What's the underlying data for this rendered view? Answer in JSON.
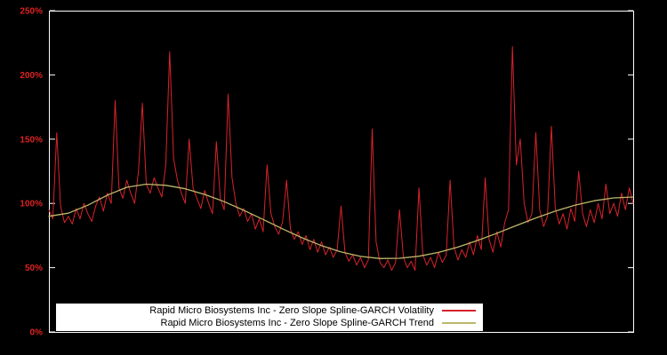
{
  "colors": {
    "background": "#000000",
    "frame": "#ffffff",
    "axis_label": "#dd2222",
    "volatility": "#d8232a",
    "trend": "#bdb76b",
    "legend_bg": "#ffffff",
    "legend_text": "#000000"
  },
  "axes": {
    "y_ticks": [
      "0%",
      "50%",
      "100%",
      "150%",
      "200%",
      "250%"
    ],
    "y_tick_values": [
      0,
      50,
      100,
      150,
      200,
      250
    ],
    "y_min": 0,
    "y_max": 250,
    "x_labels_visible": false
  },
  "legend": {
    "items": [
      {
        "label": "Rapid Micro Biosystems Inc - Zero Slope Spline-GARCH Volatility",
        "color_key": "volatility"
      },
      {
        "label": "Rapid Micro Biosystems Inc - Zero Slope Spline-GARCH Trend",
        "color_key": "trend"
      }
    ]
  },
  "chart_data": {
    "type": "line",
    "title": "",
    "xlabel": "",
    "ylabel": "",
    "y_unit": "percent",
    "ylim": [
      0,
      250
    ],
    "grid": false,
    "legend_position": "bottom-center",
    "series": [
      {
        "name": "Rapid Micro Biosystems Inc - Zero Slope Spline-GARCH Volatility",
        "color_key": "volatility",
        "values": [
          95,
          88,
          155,
          98,
          85,
          90,
          84,
          96,
          88,
          100,
          92,
          86,
          98,
          105,
          94,
          108,
          100,
          180,
          112,
          104,
          118,
          108,
          100,
          125,
          178,
          115,
          108,
          120,
          112,
          105,
          130,
          218,
          135,
          118,
          108,
          100,
          150,
          112,
          104,
          96,
          110,
          100,
          92,
          148,
          104,
          95,
          185,
          120,
          100,
          90,
          96,
          86,
          92,
          80,
          88,
          78,
          130,
          92,
          82,
          76,
          86,
          118,
          80,
          72,
          78,
          68,
          75,
          64,
          72,
          62,
          70,
          60,
          66,
          58,
          64,
          98,
          62,
          55,
          60,
          52,
          58,
          50,
          56,
          158,
          70,
          54,
          50,
          56,
          48,
          54,
          95,
          58,
          50,
          55,
          48,
          112,
          60,
          52,
          58,
          50,
          62,
          54,
          60,
          118,
          66,
          56,
          64,
          58,
          70,
          60,
          75,
          64,
          120,
          72,
          62,
          78,
          66,
          85,
          95,
          222,
          130,
          150,
          100,
          85,
          92,
          155,
          95,
          82,
          90,
          160,
          96,
          84,
          92,
          80,
          96,
          86,
          125,
          92,
          82,
          95,
          85,
          100,
          88,
          115,
          92,
          100,
          90,
          108,
          95,
          112,
          100
        ]
      },
      {
        "name": "Rapid Micro Biosystems Inc - Zero Slope Spline-GARCH Trend",
        "color_key": "trend",
        "values": [
          90,
          92.4,
          98.6,
          106.4,
          112.6,
          115,
          114.1,
          111.4,
          107,
          101.4,
          94.7,
          87.5,
          80.2,
          73.2,
          67.1,
          62.2,
          58.8,
          57.1,
          57.3,
          58.9,
          61.9,
          66,
          71.1,
          76.8,
          82.8,
          88.7,
          94,
          98.6,
          102.1,
          104.3,
          105
        ]
      }
    ]
  }
}
